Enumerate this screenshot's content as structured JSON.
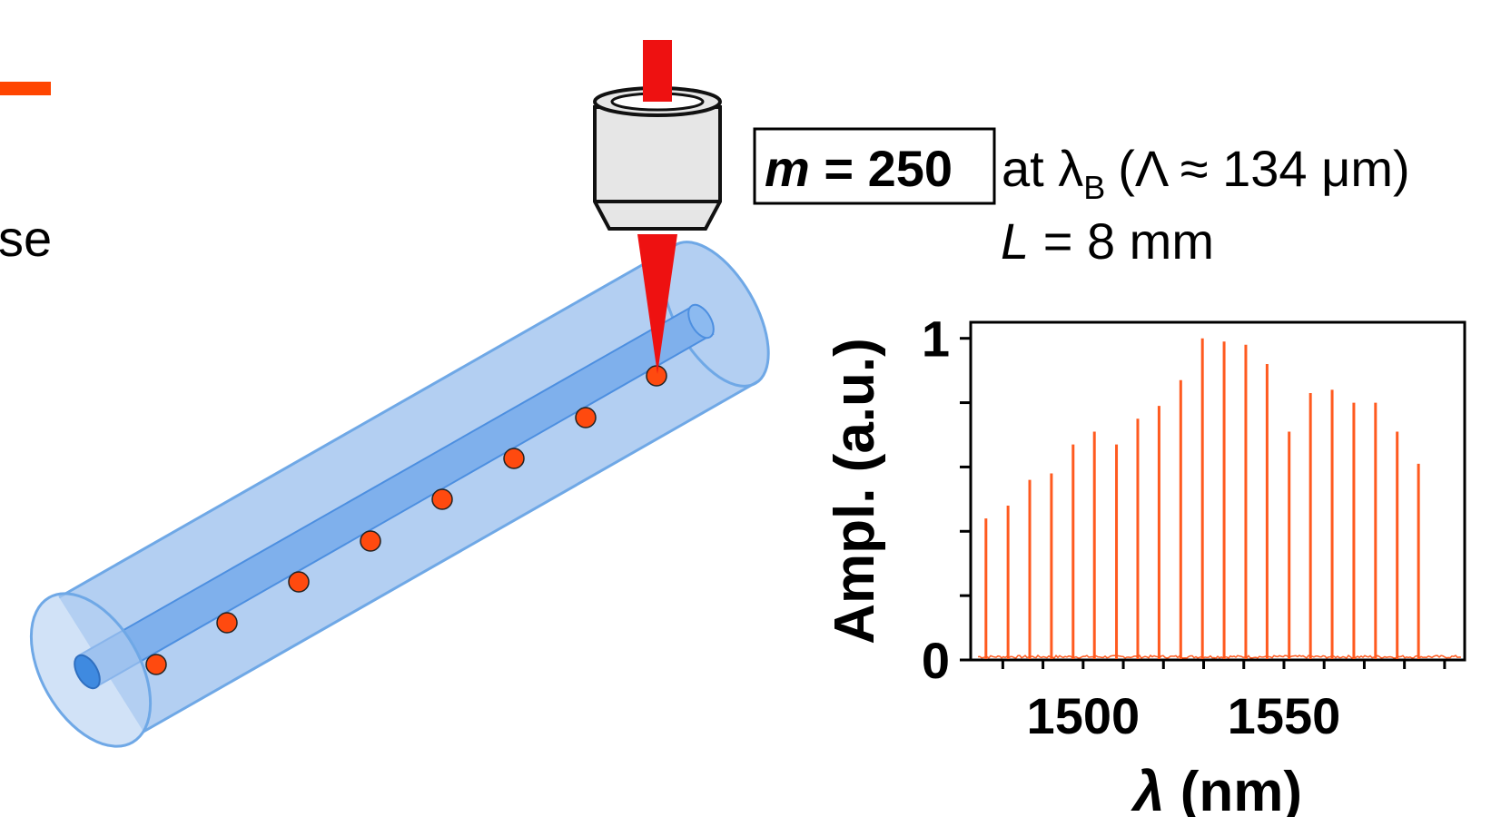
{
  "fragment_text": "se",
  "annotation": {
    "order_symbol": "m",
    "order_eq": " = 250",
    "at_text": "at λ",
    "at_sub": "B",
    "period_text": "(Λ ≈ 134 μm)",
    "length_symbol": "L",
    "length_text": " = 8 mm"
  },
  "colors": {
    "fiber_cladding": "#b3cff2",
    "fiber_edge": "#6fa8e6",
    "fiber_core": "#7fb0ec",
    "core_end": "#3f8ae0",
    "grating_point": "#ff4a0f",
    "laser_beam": "#ee1111",
    "objective_body": "#e6e6e6",
    "spectrum_line": "#ff5a1f",
    "accent_bar": "#ff4500"
  },
  "icons": [
    "laser-beam-icon",
    "objective-lens-icon",
    "optical-fiber-icon"
  ],
  "chart_data": {
    "type": "line",
    "xlabel_symbol": "λ",
    "xlabel_unit": " (nm)",
    "ylabel": "Ampl. (a.u.)",
    "xlim": [
      1472,
      1595
    ],
    "ylim": [
      0,
      1.05
    ],
    "xticks": [
      1500,
      1550
    ],
    "yticks": [
      0,
      1
    ],
    "peaks_x": [
      1475.8,
      1481.3,
      1486.7,
      1492.1,
      1497.5,
      1502.8,
      1508.3,
      1513.6,
      1518.9,
      1524.3,
      1529.7,
      1535.1,
      1540.5,
      1545.8,
      1551.3,
      1556.6,
      1562.0,
      1567.4,
      1572.8,
      1578.2,
      1583.5,
      1588.8
    ],
    "peaks_y": [
      0.44,
      0.48,
      0.56,
      0.58,
      0.67,
      0.71,
      0.67,
      0.75,
      0.79,
      0.87,
      1.0,
      0.99,
      0.98,
      0.92,
      0.71,
      0.83,
      0.84,
      0.8,
      0.8,
      0.71,
      0.61,
      0.0
    ]
  }
}
